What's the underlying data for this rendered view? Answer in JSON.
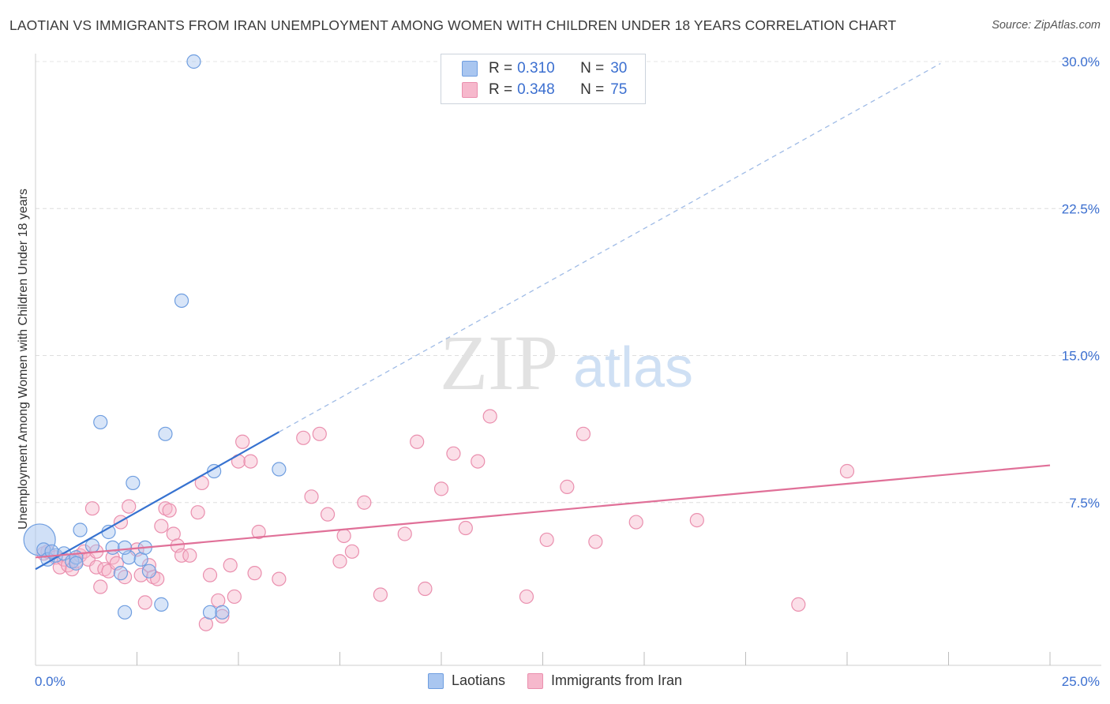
{
  "header": {
    "title": "LAOTIAN VS IMMIGRANTS FROM IRAN UNEMPLOYMENT AMONG WOMEN WITH CHILDREN UNDER 18 YEARS CORRELATION CHART",
    "source": "Source: ZipAtlas.com"
  },
  "watermark": {
    "zip": "ZIP",
    "atlas": "atlas"
  },
  "legend": {
    "rows": [
      {
        "r_label": "R =",
        "r_value": "0.310",
        "n_label": "N =",
        "n_value": "30"
      },
      {
        "r_label": "R =",
        "r_value": "0.348",
        "n_label": "N =",
        "n_value": "75"
      }
    ]
  },
  "chart_data": {
    "type": "scatter",
    "ylabel": "Unemployment Among Women with Children Under 18 years",
    "x_range": [
      0,
      25
    ],
    "y_range": [
      0,
      30
    ],
    "x_tick_labels": [
      "0.0%",
      "25.0%"
    ],
    "y_ticks": [
      7.5,
      15.0,
      22.5,
      30.0
    ],
    "y_tick_labels": [
      "7.5%",
      "15.0%",
      "22.5%",
      "30.0%"
    ],
    "grid": true,
    "legend_position": "top-center",
    "colors": {
      "laotians_fill": "#a9c6f0",
      "laotians_stroke": "#6f9ee0",
      "laotians_line": "#3672d0",
      "iran_fill": "#f6b8cc",
      "iran_stroke": "#ea8fae",
      "iran_line": "#e07098",
      "tick_label": "#3b6fd0"
    },
    "series": [
      {
        "name": "Laotians",
        "trend": {
          "x": [
            0,
            6.0
          ],
          "y": [
            4.1,
            11.1
          ],
          "dashed_extension_to": [
            22.3,
            29.9
          ]
        },
        "points": [
          [
            0.1,
            5.6
          ],
          [
            0.2,
            5.1
          ],
          [
            0.3,
            4.6
          ],
          [
            0.5,
            4.8
          ],
          [
            0.7,
            4.9
          ],
          [
            0.9,
            4.5
          ],
          [
            1.0,
            4.7
          ],
          [
            1.1,
            6.1
          ],
          [
            1.4,
            5.3
          ],
          [
            1.6,
            11.6
          ],
          [
            1.8,
            6.0
          ],
          [
            1.9,
            5.2
          ],
          [
            2.1,
            3.9
          ],
          [
            2.2,
            1.9
          ],
          [
            2.3,
            4.7
          ],
          [
            2.4,
            8.5
          ],
          [
            2.6,
            4.6
          ],
          [
            2.7,
            5.2
          ],
          [
            2.8,
            4.0
          ],
          [
            3.1,
            2.3
          ],
          [
            3.2,
            11.0
          ],
          [
            3.6,
            17.8
          ],
          [
            3.9,
            30.0
          ],
          [
            4.3,
            1.9
          ],
          [
            4.4,
            9.1
          ],
          [
            4.6,
            1.9
          ],
          [
            6.0,
            9.2
          ],
          [
            1.0,
            4.4
          ],
          [
            0.4,
            5.0
          ],
          [
            2.2,
            5.2
          ]
        ]
      },
      {
        "name": "Immigrants from Iran",
        "trend": {
          "x": [
            0,
            25
          ],
          "y": [
            4.7,
            9.4
          ]
        },
        "points": [
          [
            0.2,
            4.9
          ],
          [
            0.3,
            5.0
          ],
          [
            0.5,
            4.7
          ],
          [
            0.6,
            4.2
          ],
          [
            0.7,
            4.6
          ],
          [
            0.8,
            4.3
          ],
          [
            0.9,
            4.1
          ],
          [
            1.0,
            4.5
          ],
          [
            1.1,
            4.8
          ],
          [
            1.2,
            5.0
          ],
          [
            1.3,
            4.6
          ],
          [
            1.4,
            7.2
          ],
          [
            1.5,
            4.2
          ],
          [
            1.6,
            3.2
          ],
          [
            1.7,
            4.1
          ],
          [
            1.8,
            4.0
          ],
          [
            1.9,
            4.7
          ],
          [
            2.0,
            4.4
          ],
          [
            2.1,
            6.5
          ],
          [
            2.2,
            3.7
          ],
          [
            2.3,
            7.3
          ],
          [
            2.5,
            5.1
          ],
          [
            2.6,
            3.8
          ],
          [
            2.7,
            2.4
          ],
          [
            2.8,
            4.3
          ],
          [
            2.9,
            3.7
          ],
          [
            3.0,
            3.6
          ],
          [
            3.1,
            6.3
          ],
          [
            3.2,
            7.2
          ],
          [
            3.3,
            7.1
          ],
          [
            3.4,
            5.9
          ],
          [
            3.5,
            5.3
          ],
          [
            3.6,
            4.8
          ],
          [
            3.8,
            4.8
          ],
          [
            4.0,
            7.0
          ],
          [
            4.1,
            8.5
          ],
          [
            4.2,
            1.3
          ],
          [
            4.3,
            3.8
          ],
          [
            4.5,
            2.5
          ],
          [
            4.6,
            1.7
          ],
          [
            4.8,
            4.3
          ],
          [
            4.9,
            2.7
          ],
          [
            5.0,
            9.6
          ],
          [
            5.1,
            10.6
          ],
          [
            5.3,
            9.6
          ],
          [
            5.4,
            3.9
          ],
          [
            5.5,
            6.0
          ],
          [
            6.0,
            3.6
          ],
          [
            6.6,
            10.8
          ],
          [
            6.8,
            7.8
          ],
          [
            7.0,
            11.0
          ],
          [
            7.2,
            6.9
          ],
          [
            7.5,
            4.5
          ],
          [
            7.6,
            5.8
          ],
          [
            7.8,
            5.0
          ],
          [
            8.1,
            7.5
          ],
          [
            8.5,
            2.8
          ],
          [
            9.1,
            5.9
          ],
          [
            9.4,
            10.6
          ],
          [
            9.6,
            3.1
          ],
          [
            10.0,
            8.2
          ],
          [
            10.3,
            10.0
          ],
          [
            10.6,
            6.2
          ],
          [
            10.9,
            9.6
          ],
          [
            11.2,
            11.9
          ],
          [
            12.1,
            2.7
          ],
          [
            12.6,
            5.6
          ],
          [
            13.1,
            8.3
          ],
          [
            13.5,
            11.0
          ],
          [
            13.8,
            5.5
          ],
          [
            14.8,
            6.5
          ],
          [
            16.3,
            6.6
          ],
          [
            18.8,
            2.3
          ],
          [
            20.0,
            9.1
          ],
          [
            1.5,
            5.0
          ]
        ]
      }
    ]
  }
}
